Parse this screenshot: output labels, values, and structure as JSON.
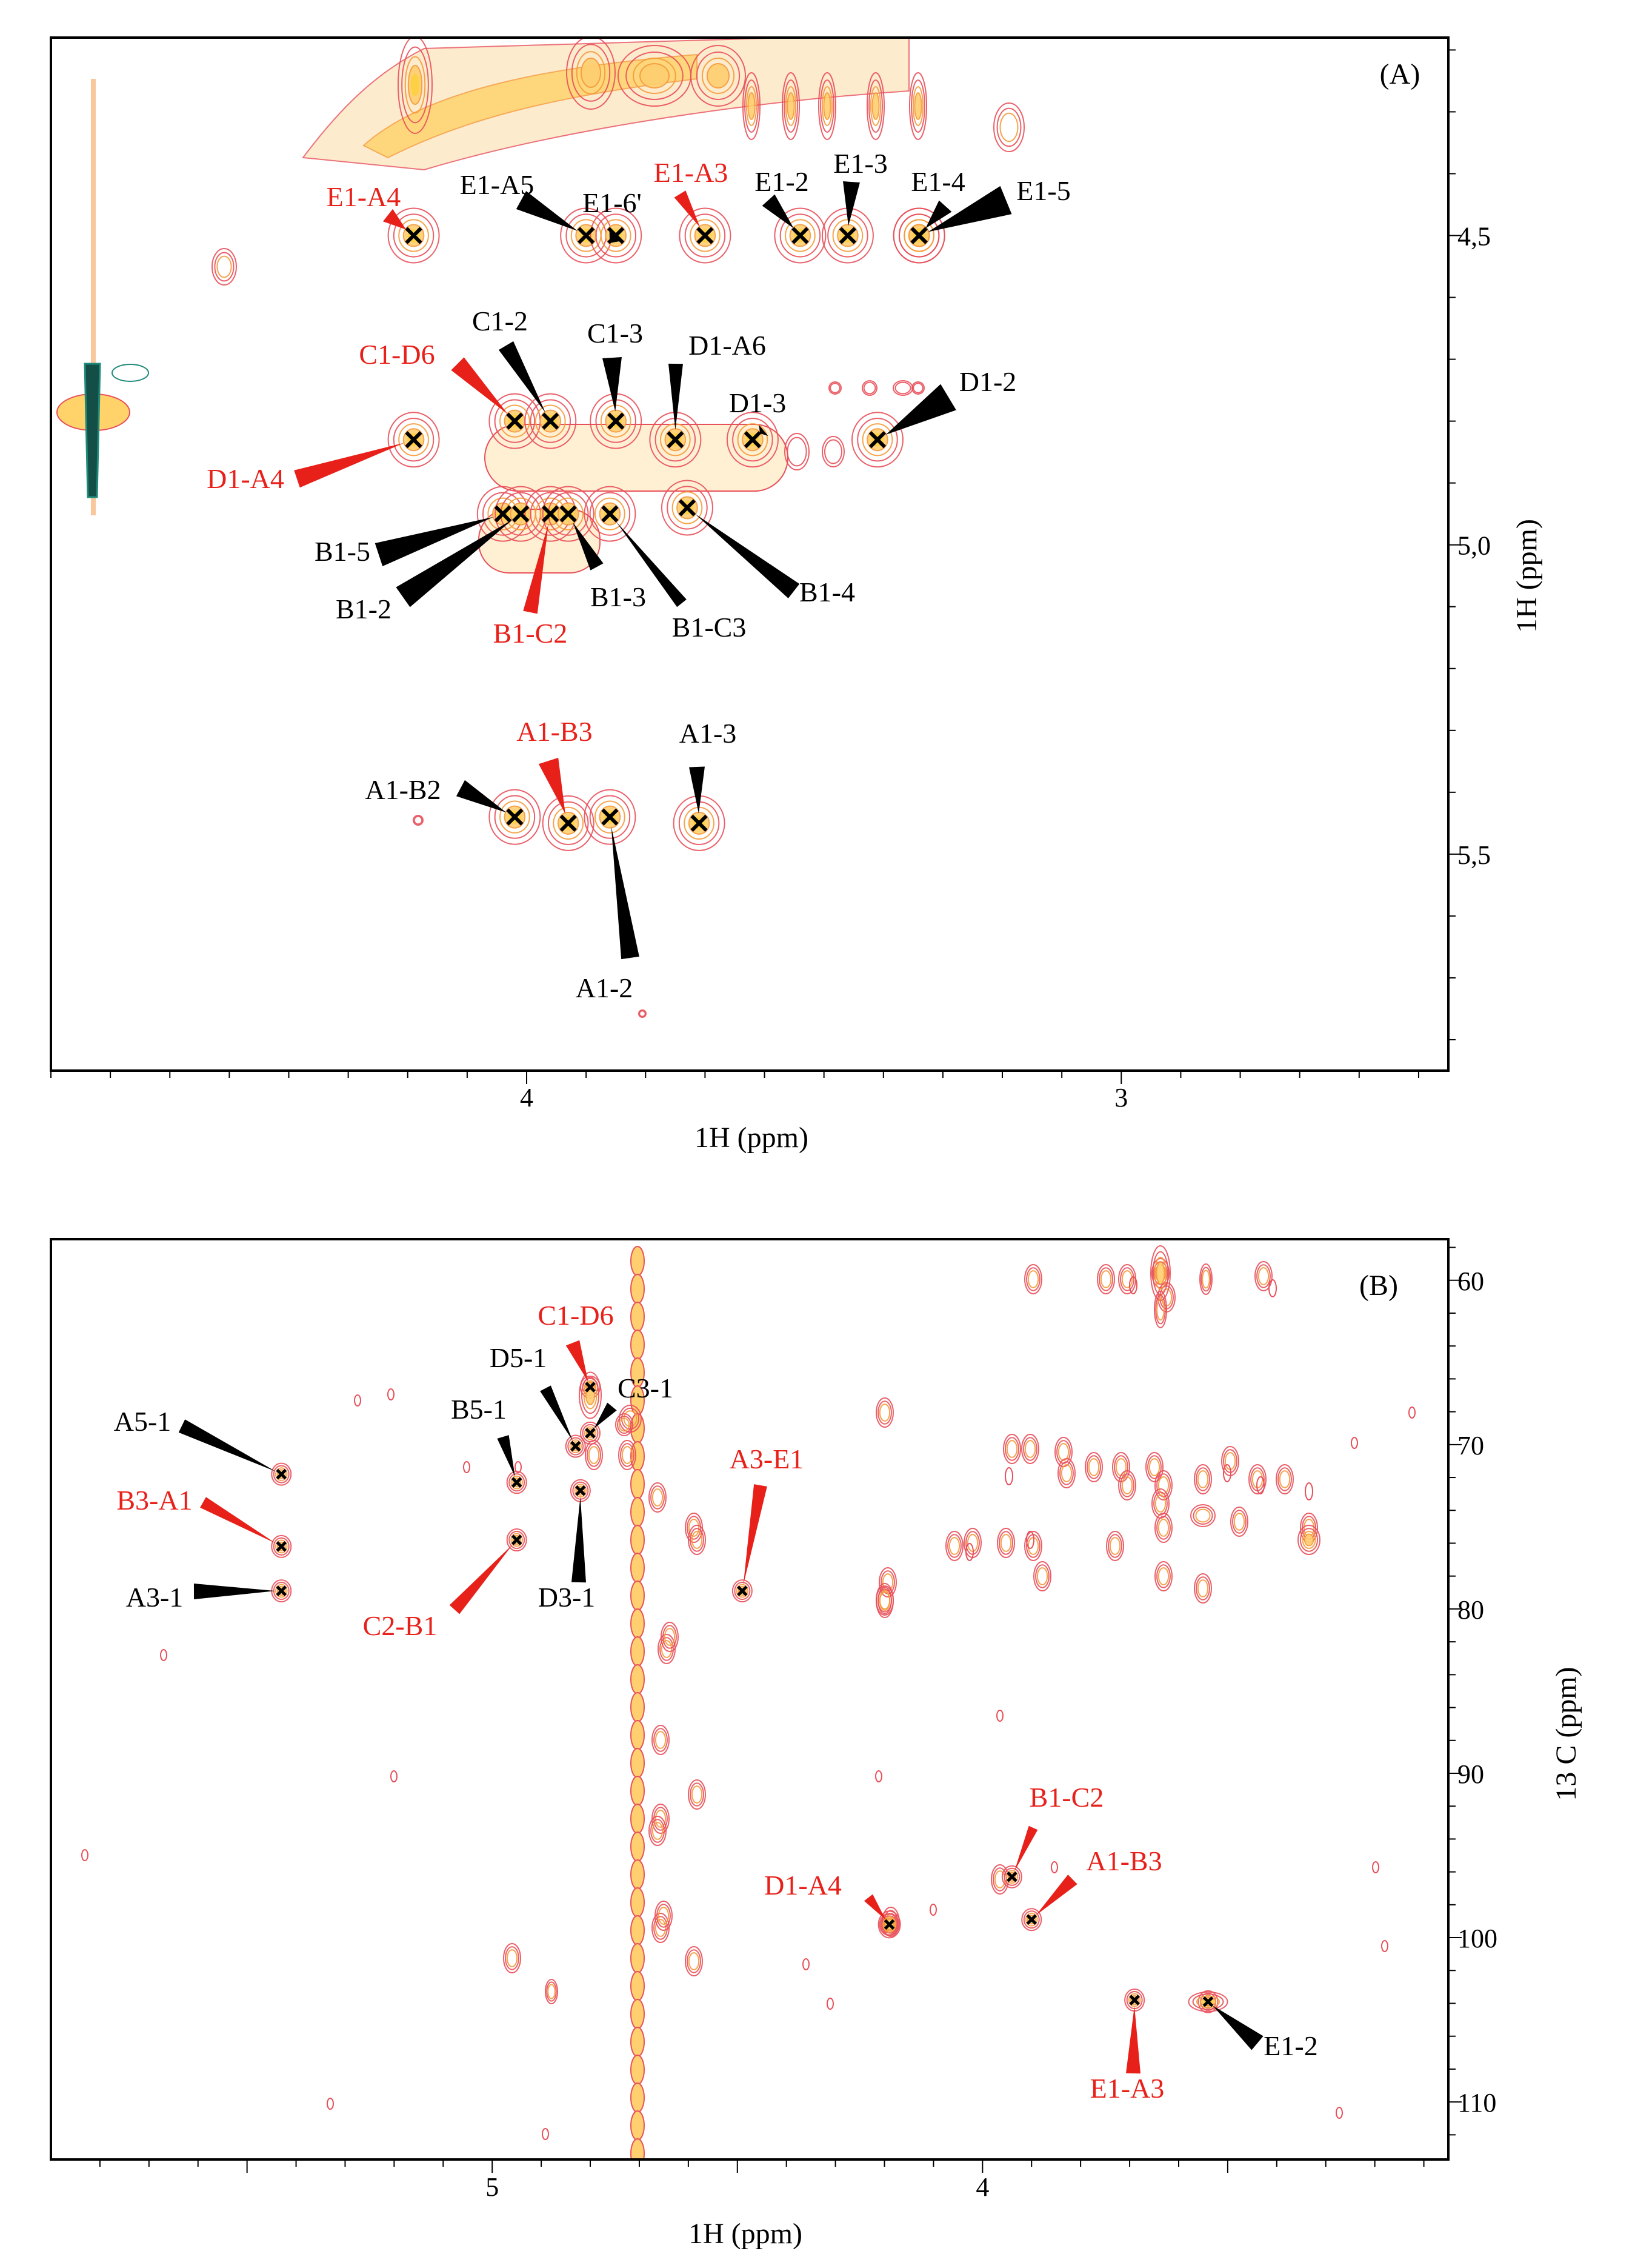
{
  "colors": {
    "black": "#000000",
    "red": "#e8201a",
    "contour_red": "#e8505a",
    "contour_orange": "#f59a3a",
    "contour_yellow": "#ffd23f",
    "contour_teal": "#1f8a7a"
  },
  "chart_data": [
    {
      "type": "scatter",
      "subtype": "2D NMR contour spectrum (H-H correlation)",
      "panel_label": "(A)",
      "xlabel": "1H  (ppm)",
      "ylabel": "1H  (ppm)",
      "xlim": [
        4.8,
        2.45
      ],
      "ylim": [
        4.18,
        5.85
      ],
      "x_ticks": [
        {
          "value": 4.0,
          "label": "4"
        },
        {
          "value": 3.0,
          "label": "3"
        }
      ],
      "y_ticks": [
        {
          "value": 4.5,
          "label": "4,5"
        },
        {
          "value": 5.0,
          "label": "5,0"
        },
        {
          "value": 5.5,
          "label": "5,5"
        }
      ],
      "peaks": [
        {
          "label": "E1-A4",
          "x": 4.19,
          "y": 4.5,
          "color": "red"
        },
        {
          "label": "E1-A5",
          "x": 3.9,
          "y": 4.5,
          "color": "black"
        },
        {
          "label": "E1-6'",
          "x": 3.85,
          "y": 4.5,
          "color": "black"
        },
        {
          "label": "E1-A3",
          "x": 3.7,
          "y": 4.5,
          "color": "red"
        },
        {
          "label": "E1-2",
          "x": 3.54,
          "y": 4.5,
          "color": "black"
        },
        {
          "label": "E1-3",
          "x": 3.46,
          "y": 4.5,
          "color": "black"
        },
        {
          "label": "E1-4",
          "x": 3.34,
          "y": 4.5,
          "color": "black"
        },
        {
          "label": "E1-5",
          "x": 3.34,
          "y": 4.5,
          "color": "black"
        },
        {
          "label": "D1-A4",
          "x": 4.19,
          "y": 4.83,
          "color": "red"
        },
        {
          "label": "C1-D6",
          "x": 4.02,
          "y": 4.8,
          "color": "red"
        },
        {
          "label": "C1-2",
          "x": 3.96,
          "y": 4.8,
          "color": "black"
        },
        {
          "label": "C1-3",
          "x": 3.85,
          "y": 4.8,
          "color": "black"
        },
        {
          "label": "D1-A6",
          "x": 3.75,
          "y": 4.83,
          "color": "black"
        },
        {
          "label": "D1-3",
          "x": 3.62,
          "y": 4.83,
          "color": "black"
        },
        {
          "label": "D1-2",
          "x": 3.41,
          "y": 4.83,
          "color": "black"
        },
        {
          "label": "B1-5",
          "x": 4.04,
          "y": 4.95,
          "color": "black"
        },
        {
          "label": "B1-2",
          "x": 4.01,
          "y": 4.95,
          "color": "black"
        },
        {
          "label": "B1-C2",
          "x": 3.96,
          "y": 4.95,
          "color": "red"
        },
        {
          "label": "B1-3",
          "x": 3.93,
          "y": 4.95,
          "color": "black"
        },
        {
          "label": "B1-C3",
          "x": 3.86,
          "y": 4.95,
          "color": "black"
        },
        {
          "label": "B1-4",
          "x": 3.73,
          "y": 4.94,
          "color": "black"
        },
        {
          "label": "A1-B2",
          "x": 4.02,
          "y": 5.44,
          "color": "black"
        },
        {
          "label": "A1-B3",
          "x": 3.93,
          "y": 5.45,
          "color": "red"
        },
        {
          "label": "A1-2",
          "x": 3.86,
          "y": 5.44,
          "color": "black"
        },
        {
          "label": "A1-3",
          "x": 3.71,
          "y": 5.45,
          "color": "black"
        }
      ]
    },
    {
      "type": "scatter",
      "subtype": "2D NMR contour spectrum (H-C correlation)",
      "panel_label": "(B)",
      "xlabel": "1H  (ppm)",
      "ylabel": "13 C  (ppm)",
      "xlim": [
        5.9,
        3.05
      ],
      "ylim": [
        57.5,
        113.5
      ],
      "x_ticks": [
        {
          "value": 5.0,
          "label": "5"
        },
        {
          "value": 4.0,
          "label": "4"
        }
      ],
      "y_ticks": [
        {
          "value": 60,
          "label": "60"
        },
        {
          "value": 70,
          "label": "70"
        },
        {
          "value": 80,
          "label": "80"
        },
        {
          "value": 90,
          "label": "90"
        },
        {
          "value": 100,
          "label": "100"
        },
        {
          "value": 110,
          "label": "110"
        }
      ],
      "peaks": [
        {
          "label": "A5-1",
          "x": 5.43,
          "y": 71.8,
          "color": "black"
        },
        {
          "label": "B3-A1",
          "x": 5.43,
          "y": 76.2,
          "color": "red"
        },
        {
          "label": "A3-1",
          "x": 5.43,
          "y": 78.9,
          "color": "black"
        },
        {
          "label": "B5-1",
          "x": 4.95,
          "y": 72.3,
          "color": "black"
        },
        {
          "label": "C2-B1",
          "x": 4.95,
          "y": 75.8,
          "color": "red"
        },
        {
          "label": "D5-1",
          "x": 4.83,
          "y": 70.1,
          "color": "black"
        },
        {
          "label": "C1-D6",
          "x": 4.8,
          "y": 66.5,
          "color": "red"
        },
        {
          "label": "C3-1",
          "x": 4.8,
          "y": 69.3,
          "color": "black"
        },
        {
          "label": "D3-1",
          "x": 4.82,
          "y": 72.8,
          "color": "black"
        },
        {
          "label": "A3-E1",
          "x": 4.49,
          "y": 78.9,
          "color": "red"
        },
        {
          "label": "D1-A4",
          "x": 4.19,
          "y": 99.2,
          "color": "red"
        },
        {
          "label": "B1-C2",
          "x": 3.94,
          "y": 96.3,
          "color": "red"
        },
        {
          "label": "A1-B3",
          "x": 3.9,
          "y": 98.9,
          "color": "red"
        },
        {
          "label": "E1-A3",
          "x": 3.69,
          "y": 103.8,
          "color": "red"
        },
        {
          "label": "E1-2",
          "x": 3.54,
          "y": 103.9,
          "color": "black"
        }
      ]
    }
  ]
}
